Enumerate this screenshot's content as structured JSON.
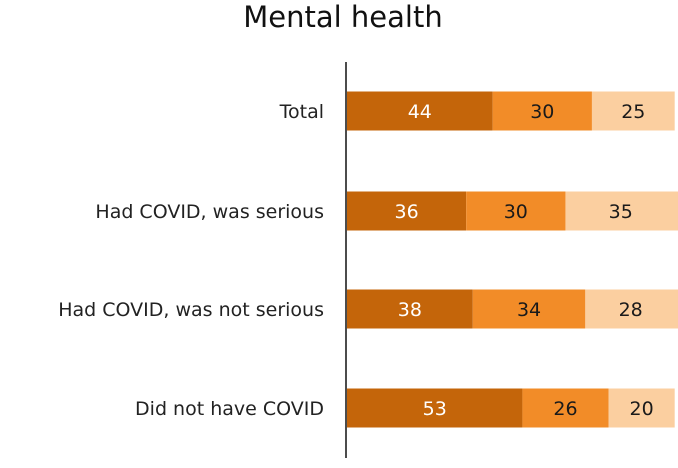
{
  "chart_data": {
    "type": "bar",
    "orientation": "horizontal",
    "stacked": true,
    "title": "Mental health",
    "categories": [
      "Total",
      "Had COVID, was serious",
      "Had COVID, was not serious",
      "Did not have COVID"
    ],
    "series": [
      {
        "values": [
          44,
          36,
          38,
          53
        ],
        "color": "#C4650A",
        "label_color": "#FFFFFF"
      },
      {
        "values": [
          30,
          30,
          34,
          26
        ],
        "color": "#F28C28",
        "label_color": "#1A1A1A"
      },
      {
        "values": [
          25,
          35,
          28,
          20
        ],
        "color": "#FBCFA0",
        "label_color": "#1A1A1A"
      }
    ],
    "grid": false,
    "legend": "none"
  }
}
